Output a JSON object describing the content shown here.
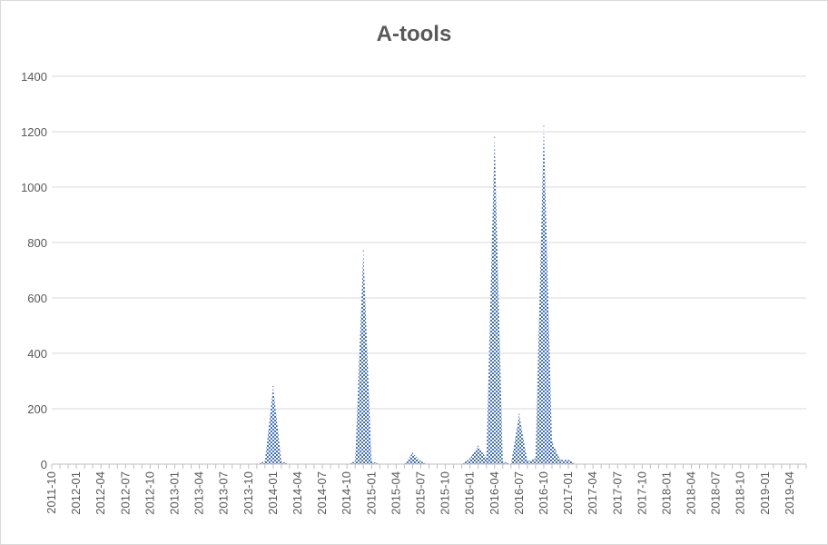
{
  "chart_data": {
    "type": "area",
    "title": "A-tools",
    "xlabel": "",
    "ylabel": "",
    "ylim": [
      0,
      1400
    ],
    "yticks": [
      0,
      200,
      400,
      600,
      800,
      1000,
      1200,
      1400
    ],
    "grid": true,
    "legend": "none",
    "fill_color": "#4472c4",
    "x_start": "2011-10",
    "x_end": "2019-06",
    "x_tick_labels": [
      "2011-10",
      "2012-01",
      "2012-04",
      "2012-07",
      "2012-10",
      "2013-01",
      "2013-04",
      "2013-07",
      "2013-10",
      "2014-01",
      "2014-04",
      "2014-07",
      "2014-10",
      "2015-01",
      "2015-04",
      "2015-07",
      "2015-10",
      "2016-01",
      "2016-04",
      "2016-07",
      "2016-10",
      "2017-01",
      "2017-04",
      "2017-07",
      "2017-10",
      "2018-01",
      "2018-04",
      "2018-07",
      "2018-10",
      "2019-01",
      "2019-04"
    ],
    "points": [
      {
        "x": "2013-11",
        "y": 0
      },
      {
        "x": "2013-12",
        "y": 10
      },
      {
        "x": "2014-01",
        "y": 280
      },
      {
        "x": "2014-02",
        "y": 10
      },
      {
        "x": "2014-03",
        "y": 0
      },
      {
        "x": "2014-10",
        "y": 0
      },
      {
        "x": "2014-11",
        "y": 10
      },
      {
        "x": "2014-12",
        "y": 770
      },
      {
        "x": "2015-01",
        "y": 10
      },
      {
        "x": "2015-02",
        "y": 0
      },
      {
        "x": "2015-05",
        "y": 0
      },
      {
        "x": "2015-06",
        "y": 40
      },
      {
        "x": "2015-07",
        "y": 10
      },
      {
        "x": "2015-08",
        "y": 0
      },
      {
        "x": "2015-12",
        "y": 0
      },
      {
        "x": "2016-01",
        "y": 20
      },
      {
        "x": "2016-02",
        "y": 65
      },
      {
        "x": "2016-03",
        "y": 20
      },
      {
        "x": "2016-04",
        "y": 1180
      },
      {
        "x": "2016-05",
        "y": 10
      },
      {
        "x": "2016-06",
        "y": 0
      },
      {
        "x": "2016-07",
        "y": 180
      },
      {
        "x": "2016-08",
        "y": 10
      },
      {
        "x": "2016-09",
        "y": 20
      },
      {
        "x": "2016-10",
        "y": 1220
      },
      {
        "x": "2016-11",
        "y": 80
      },
      {
        "x": "2016-12",
        "y": 15
      },
      {
        "x": "2017-01",
        "y": 15
      },
      {
        "x": "2017-02",
        "y": 0
      }
    ]
  }
}
